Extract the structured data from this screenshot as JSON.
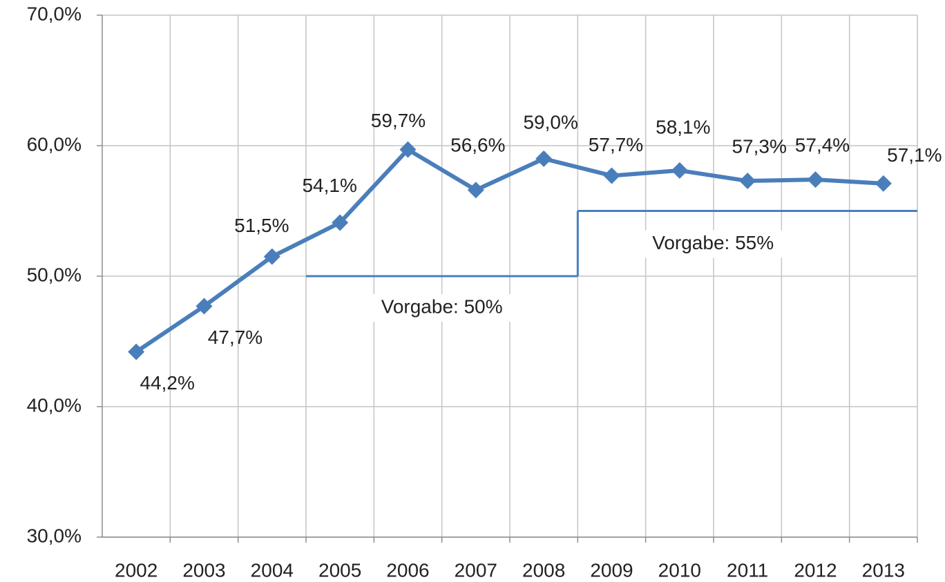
{
  "chart_data": {
    "type": "line",
    "categories": [
      "2002",
      "2003",
      "2004",
      "2005",
      "2006",
      "2007",
      "2008",
      "2009",
      "2010",
      "2011",
      "2012",
      "2013"
    ],
    "series": [
      {
        "color": "#4a7ebb",
        "values": [
          44.2,
          47.7,
          51.5,
          54.1,
          59.7,
          56.6,
          59.0,
          57.7,
          58.1,
          57.3,
          57.4,
          57.1
        ],
        "value_labels": [
          "44,2%",
          "47,7%",
          "51,5%",
          "54,1%",
          "59,7%",
          "56,6%",
          "59,0%",
          "57,7%",
          "58,1%",
          "57,3%",
          "57,4%",
          "57,1%"
        ]
      }
    ],
    "targets": [
      {
        "label": "Vorgabe: 50%",
        "value": 50,
        "start": "2005",
        "end": "2008"
      },
      {
        "label": "Vorgabe: 55%",
        "value": 55,
        "start": "2009",
        "end": "2013"
      }
    ],
    "target_color": "#4a7ebb",
    "ylim": [
      30,
      70
    ],
    "yticks": [
      {
        "value": 30,
        "label": "30,0%"
      },
      {
        "value": 40,
        "label": "40,0%"
      },
      {
        "value": 50,
        "label": "50,0%"
      },
      {
        "value": 60,
        "label": "60,0%"
      },
      {
        "value": 70,
        "label": "70,0%"
      }
    ],
    "grid": true
  }
}
